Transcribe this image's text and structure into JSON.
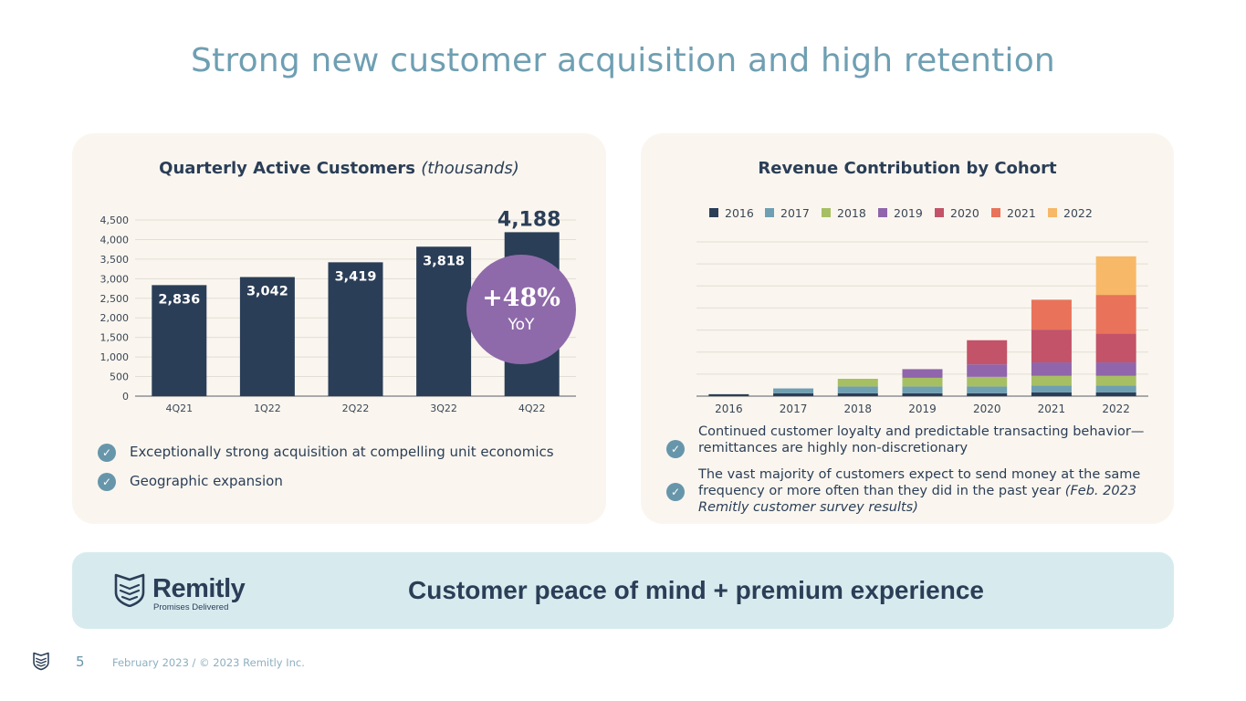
{
  "slide_title": "Strong new customer acquisition and high retention",
  "left_card": {
    "title": "Quarterly Active Customers",
    "title_sub": "(thousands)",
    "badge": {
      "value": "+48%",
      "label": "YoY"
    },
    "bullets": [
      "Exceptionally strong acquisition at compelling unit economics",
      "Geographic expansion"
    ]
  },
  "right_card": {
    "title": "Revenue Contribution by Cohort",
    "bullets": [
      {
        "text": "Continued customer loyalty and predictable transacting behavior—remittances are highly non-discretionary"
      },
      {
        "text": "The vast majority of customers expect to send money at the same frequency or more often than they did in the past year",
        "note": "(Feb. 2023 Remitly customer survey results)"
      }
    ]
  },
  "banner": {
    "brand": "Remitly",
    "tagline": "Promises Delivered",
    "text": "Customer peace of mind + premium experience"
  },
  "footer": {
    "page_number": "5",
    "text": "February 2023 / © 2023 Remitly Inc."
  },
  "colors": {
    "navy": "#2b3e57",
    "title_teal": "#6f9fb2",
    "badge_purple": "#8f6aaa",
    "check_blue": "#6796ab",
    "card_bg": "#faf6ef",
    "banner_bg": "#d7ebef"
  },
  "chart_data": [
    {
      "type": "bar",
      "title": "Quarterly Active Customers (thousands)",
      "categories": [
        "4Q21",
        "1Q22",
        "2Q22",
        "3Q22",
        "4Q22"
      ],
      "values": [
        2836,
        3042,
        3419,
        3818,
        4188
      ],
      "value_labels": [
        "2,836",
        "3,042",
        "3,419",
        "3,818",
        "4,188"
      ],
      "yticks": [
        "0",
        "500",
        "1,000",
        "1,500",
        "2,000",
        "2,500",
        "3,000",
        "3,500",
        "4,000",
        "4,500"
      ],
      "ylim": [
        0,
        4500
      ],
      "grid": true
    },
    {
      "type": "bar",
      "stacked": true,
      "title": "Revenue Contribution by Cohort",
      "categories": [
        "2016",
        "2017",
        "2018",
        "2019",
        "2020",
        "2021",
        "2022"
      ],
      "legend_position": "top",
      "ylim": [
        0,
        16
      ],
      "grid": true,
      "series": [
        {
          "name": "2016",
          "color": "#2b3e57",
          "values": [
            0.2,
            0.3,
            0.3,
            0.3,
            0.3,
            0.4,
            0.4
          ]
        },
        {
          "name": "2017",
          "color": "#6e9fb3",
          "values": [
            0,
            0.5,
            0.7,
            0.7,
            0.7,
            0.7,
            0.7
          ]
        },
        {
          "name": "2018",
          "color": "#a7bf63",
          "values": [
            0,
            0,
            0.8,
            0.9,
            1.0,
            1.0,
            1.0
          ]
        },
        {
          "name": "2019",
          "color": "#9065ab",
          "values": [
            0,
            0,
            0,
            0.9,
            1.3,
            1.4,
            1.4
          ]
        },
        {
          "name": "2020",
          "color": "#c35368",
          "values": [
            0,
            0,
            0,
            0,
            2.5,
            3.4,
            3.0
          ]
        },
        {
          "name": "2021",
          "color": "#e8735a",
          "values": [
            0,
            0,
            0,
            0,
            0,
            3.1,
            4.0
          ]
        },
        {
          "name": "2022",
          "color": "#f7b867",
          "values": [
            0,
            0,
            0,
            0,
            0,
            0,
            4.0
          ]
        }
      ]
    }
  ]
}
